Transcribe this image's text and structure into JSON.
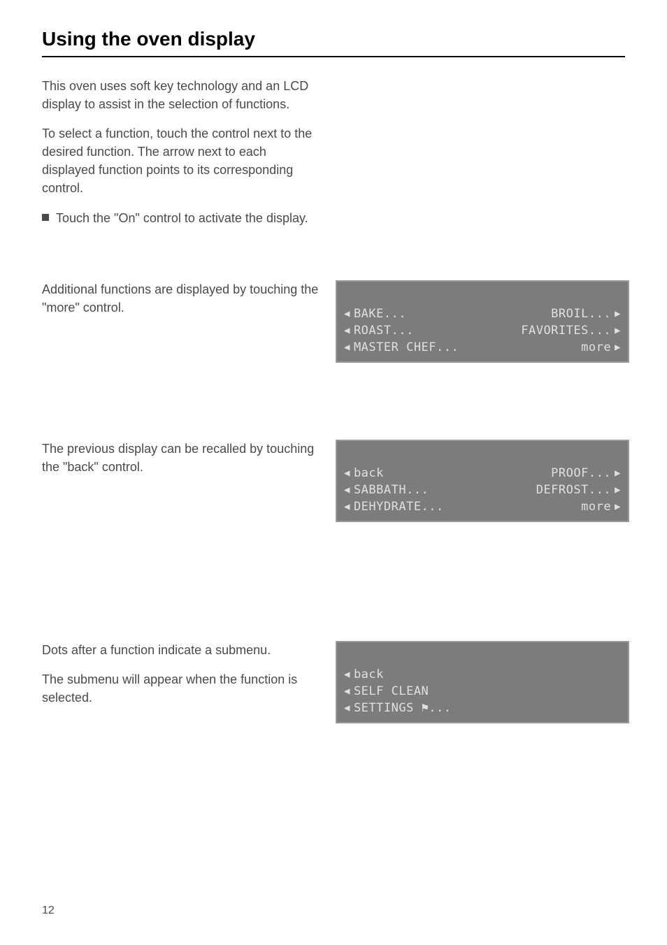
{
  "page": {
    "title": "Using the oven display",
    "number": "12"
  },
  "intro": {
    "p1": "This oven uses soft key technology and an LCD display to assist in the selection of functions.",
    "p2": "To select a function, touch the control next to the desired function. The arrow next to each displayed function points to its corresponding control.",
    "bullet1": "Touch the \"On\" control to activate the display."
  },
  "section1": {
    "text": "Additional functions are displayed by touching the \"more\" control.",
    "lcd": {
      "row1_left": "BAKE...",
      "row1_right": "BROIL...",
      "row2_left": "ROAST...",
      "row2_right": "FAVORITES...",
      "row3_left": "MASTER CHEF...",
      "row3_right": "more"
    }
  },
  "section2": {
    "text": "The previous display can be recalled by touching the \"back\" control.",
    "lcd": {
      "row1_left": "back",
      "row1_right": "PROOF...",
      "row2_left": "SABBATH...",
      "row2_right": "DEFROST...",
      "row3_left": "DEHYDRATE...",
      "row3_right": "more"
    }
  },
  "section3": {
    "p1": "Dots after a function indicate a submenu.",
    "p2": "The submenu will appear when the function is selected.",
    "lcd": {
      "row1_left": "back",
      "row2_left": "SELF CLEAN",
      "row3_left": "SETTINGS ⚑..."
    }
  },
  "glyphs": {
    "arrow_left": "◀",
    "arrow_right": "▶"
  }
}
